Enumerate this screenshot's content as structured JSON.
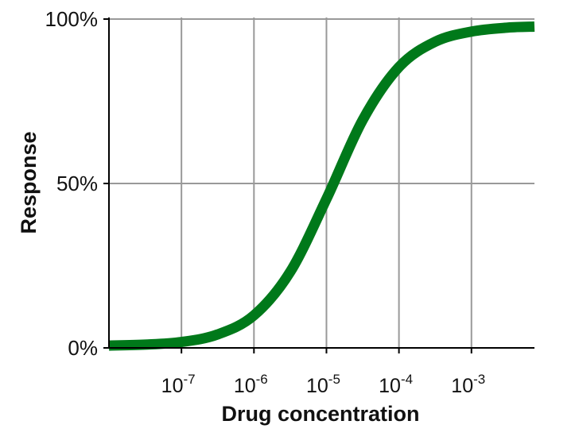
{
  "chart_data": {
    "type": "line",
    "title": "",
    "xlabel": "Drug concentration",
    "ylabel": "Response",
    "x_scale": "log",
    "xlim": [
      1e-08,
      0.0074
    ],
    "ylim": [
      0,
      100
    ],
    "grid": true,
    "x_ticks": [
      {
        "value": 1e-07,
        "base": "10",
        "exp": "-7"
      },
      {
        "value": 1e-06,
        "base": "10",
        "exp": "-6"
      },
      {
        "value": 1e-05,
        "base": "10",
        "exp": "-5"
      },
      {
        "value": 0.0001,
        "base": "10",
        "exp": "-4"
      },
      {
        "value": 0.001,
        "base": "10",
        "exp": "-3"
      }
    ],
    "y_ticks": [
      {
        "value": 0,
        "label": "0%"
      },
      {
        "value": 50,
        "label": "50%"
      },
      {
        "value": 100,
        "label": "100%"
      }
    ],
    "series": [
      {
        "color": "#00791a",
        "x": [
          1e-08,
          3.16e-08,
          1e-07,
          3.16e-07,
          1e-06,
          3.16e-06,
          1e-05,
          3.16e-05,
          0.0001,
          0.000316,
          0.001,
          0.00316,
          0.0074
        ],
        "y": [
          0.7,
          1.0,
          1.8,
          4.1,
          9.9,
          23.1,
          45.3,
          69.3,
          85.4,
          93.1,
          96.2,
          97.4,
          97.7
        ]
      }
    ]
  }
}
